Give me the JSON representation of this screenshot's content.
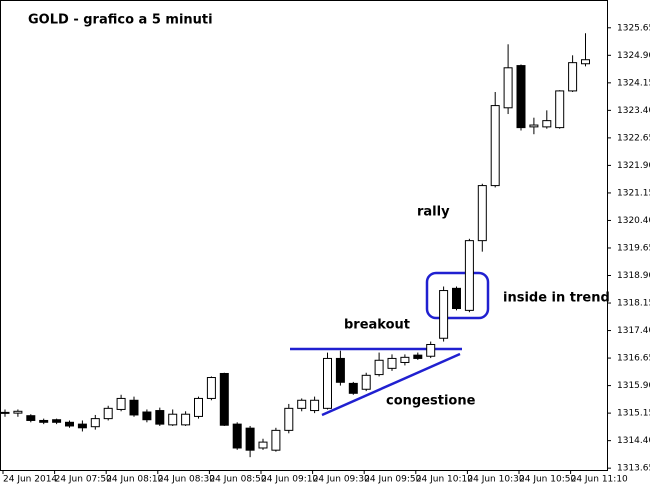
{
  "chart_data": {
    "type": "candlestick",
    "title": "GOLD - grafico a 5 minuti",
    "annotations": [
      "rally",
      "inside in trend",
      "breakout",
      "congestione"
    ],
    "categories": [
      "24 Jun 2014",
      null,
      null,
      null,
      "24 Jun 07:50",
      null,
      null,
      null,
      "24 Jun 08:10",
      null,
      null,
      null,
      "24 Jun 08:30",
      null,
      null,
      null,
      "24 Jun 08:50",
      null,
      null,
      null,
      "24 Jun 09:10",
      null,
      null,
      null,
      "24 Jun 09:30",
      null,
      null,
      null,
      "24 Jun 09:50",
      null,
      null,
      null,
      "24 Jun 10:10",
      null,
      null,
      null,
      "24 Jun 10:30",
      null,
      null,
      null,
      "24 Jun 10:50",
      null,
      null,
      null,
      "24 Jun 11:10",
      null
    ],
    "open": [
      1315.17,
      1315.15,
      1315.08,
      1314.95,
      1314.97,
      1314.9,
      1314.85,
      1314.78,
      1315.0,
      1315.25,
      1315.5,
      1315.18,
      1315.22,
      1314.83,
      1314.83,
      1315.06,
      1315.55,
      1316.23,
      1314.85,
      1314.74,
      1314.2,
      1314.14,
      1314.68,
      1315.28,
      1315.22,
      1315.28,
      1316.64,
      1315.96,
      1315.8,
      1316.2,
      1316.37,
      1316.53,
      1316.73,
      1316.7,
      1317.19,
      1318.55,
      1317.95,
      1319.85,
      1321.35,
      1323.47,
      1324.62,
      1322.95,
      1322.95,
      1322.93,
      1323.93,
      1324.67
    ],
    "high": [
      1315.25,
      1315.25,
      1315.12,
      1315.0,
      1315.0,
      1314.95,
      1314.95,
      1315.1,
      1315.35,
      1315.65,
      1315.6,
      1315.25,
      1315.3,
      1315.25,
      1315.2,
      1315.6,
      1316.15,
      1316.25,
      1314.9,
      1314.8,
      1314.45,
      1314.75,
      1315.4,
      1315.55,
      1315.6,
      1316.8,
      1316.85,
      1316.0,
      1316.25,
      1316.8,
      1316.75,
      1316.75,
      1316.8,
      1317.1,
      1318.6,
      1318.6,
      1319.9,
      1321.4,
      1323.9,
      1325.2,
      1324.65,
      1323.2,
      1323.4,
      1323.95,
      1324.9,
      1325.5
    ],
    "low": [
      1315.05,
      1315.05,
      1314.9,
      1314.85,
      1314.85,
      1314.75,
      1314.65,
      1314.7,
      1314.95,
      1315.2,
      1315.05,
      1314.9,
      1314.8,
      1314.8,
      1314.8,
      1315.0,
      1315.5,
      1314.8,
      1314.15,
      1313.95,
      1314.15,
      1314.1,
      1314.6,
      1315.2,
      1315.15,
      1315.25,
      1315.9,
      1315.65,
      1315.75,
      1316.15,
      1316.3,
      1316.45,
      1316.6,
      1316.65,
      1317.1,
      1317.95,
      1317.9,
      1319.55,
      1321.3,
      1323.3,
      1322.85,
      1322.75,
      1322.9,
      1322.9,
      1323.9,
      1324.6
    ],
    "close": [
      1315.15,
      1315.2,
      1314.95,
      1314.9,
      1314.9,
      1314.8,
      1314.75,
      1315.0,
      1315.28,
      1315.55,
      1315.1,
      1314.97,
      1314.85,
      1315.12,
      1315.12,
      1315.55,
      1316.12,
      1314.82,
      1314.2,
      1314.14,
      1314.36,
      1314.68,
      1315.28,
      1315.5,
      1315.5,
      1316.64,
      1315.99,
      1315.69,
      1316.18,
      1316.59,
      1316.64,
      1316.67,
      1316.64,
      1317.02,
      1318.49,
      1318.0,
      1319.85,
      1321.35,
      1323.53,
      1324.56,
      1322.93,
      1323.0,
      1323.12,
      1323.93,
      1324.7,
      1324.78
    ],
    "up_color": "#ffffff",
    "down_color": "#000000",
    "edge_color": "#000000",
    "ylim": [
      1313.6,
      1326.38
    ],
    "yticks": [
      1325.65,
      {
        "value": 1324.9,
        "label": "1324.90"
      },
      1324.15,
      {
        "value": 1323.4,
        "label": "1323.40"
      },
      1322.65,
      {
        "value": 1321.9,
        "label": "1321.90"
      },
      1321.15,
      {
        "value": 1320.4,
        "label": "1320.40"
      },
      1319.65,
      {
        "value": 1318.9,
        "label": "1318.90"
      },
      1318.15,
      {
        "value": 1317.4,
        "label": "1317.40"
      },
      1316.65,
      {
        "value": 1315.9,
        "label": "1315.90"
      },
      1315.15,
      {
        "value": 1314.4,
        "label": "1314.40"
      },
      1313.65
    ]
  }
}
